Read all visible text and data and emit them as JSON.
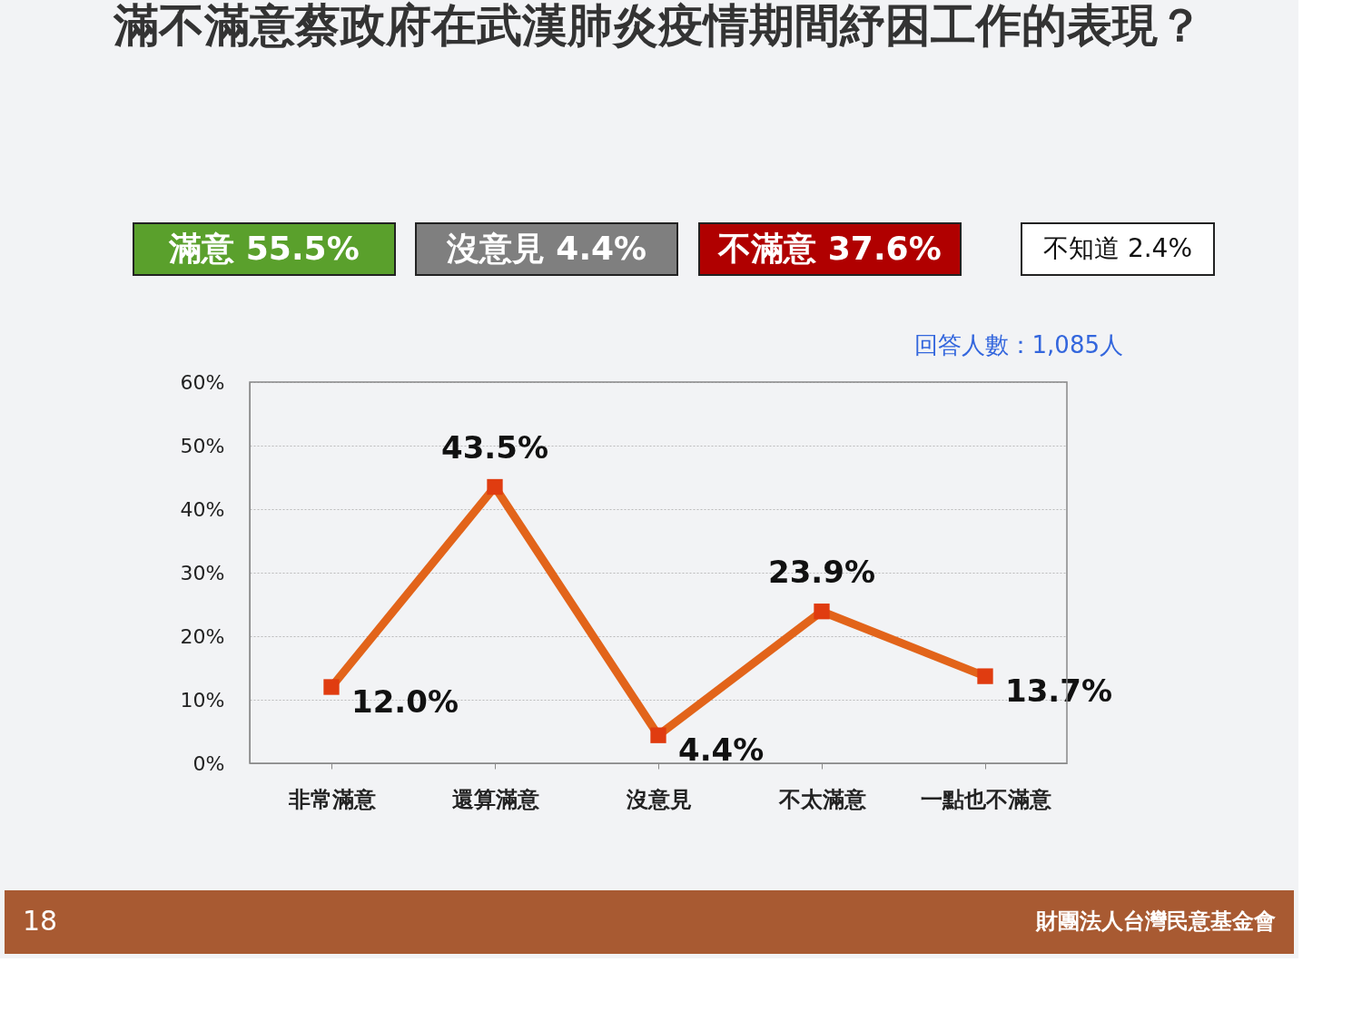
{
  "chart_data": {
    "type": "line",
    "title": "滿不滿意蔡政府在武漢肺炎疫情期間紓困工作的表現？",
    "categories": [
      "非常滿意",
      "還算滿意",
      "沒意見",
      "不太滿意",
      "一點也不滿意"
    ],
    "series": [
      {
        "color": "#e2641a",
        "values": [
          12.0,
          43.5,
          4.4,
          23.9,
          13.7
        ]
      }
    ],
    "ylim": [
      0,
      60
    ],
    "yticks": [
      {
        "value": 0,
        "label": "0%"
      },
      {
        "value": 10,
        "label": "10%"
      },
      {
        "value": 20,
        "label": "20%"
      },
      {
        "value": 30,
        "label": "30%"
      },
      {
        "value": 40,
        "label": "40%"
      },
      {
        "value": 50,
        "label": "50%"
      },
      {
        "value": 60,
        "label": "60%"
      }
    ],
    "value_labels": [
      "12.0%",
      "43.5%",
      "4.4%",
      "23.9%",
      "13.7%"
    ],
    "grid": "y",
    "marker": "square",
    "line_style": "solid",
    "annotations": [
      "滿意 55.5%",
      "沒意見 4.4%",
      "不滿意 37.6%",
      "不知道 2.4%",
      "回答人數：1,085人",
      "18",
      "財團法人台灣民意基金會"
    ]
  }
}
